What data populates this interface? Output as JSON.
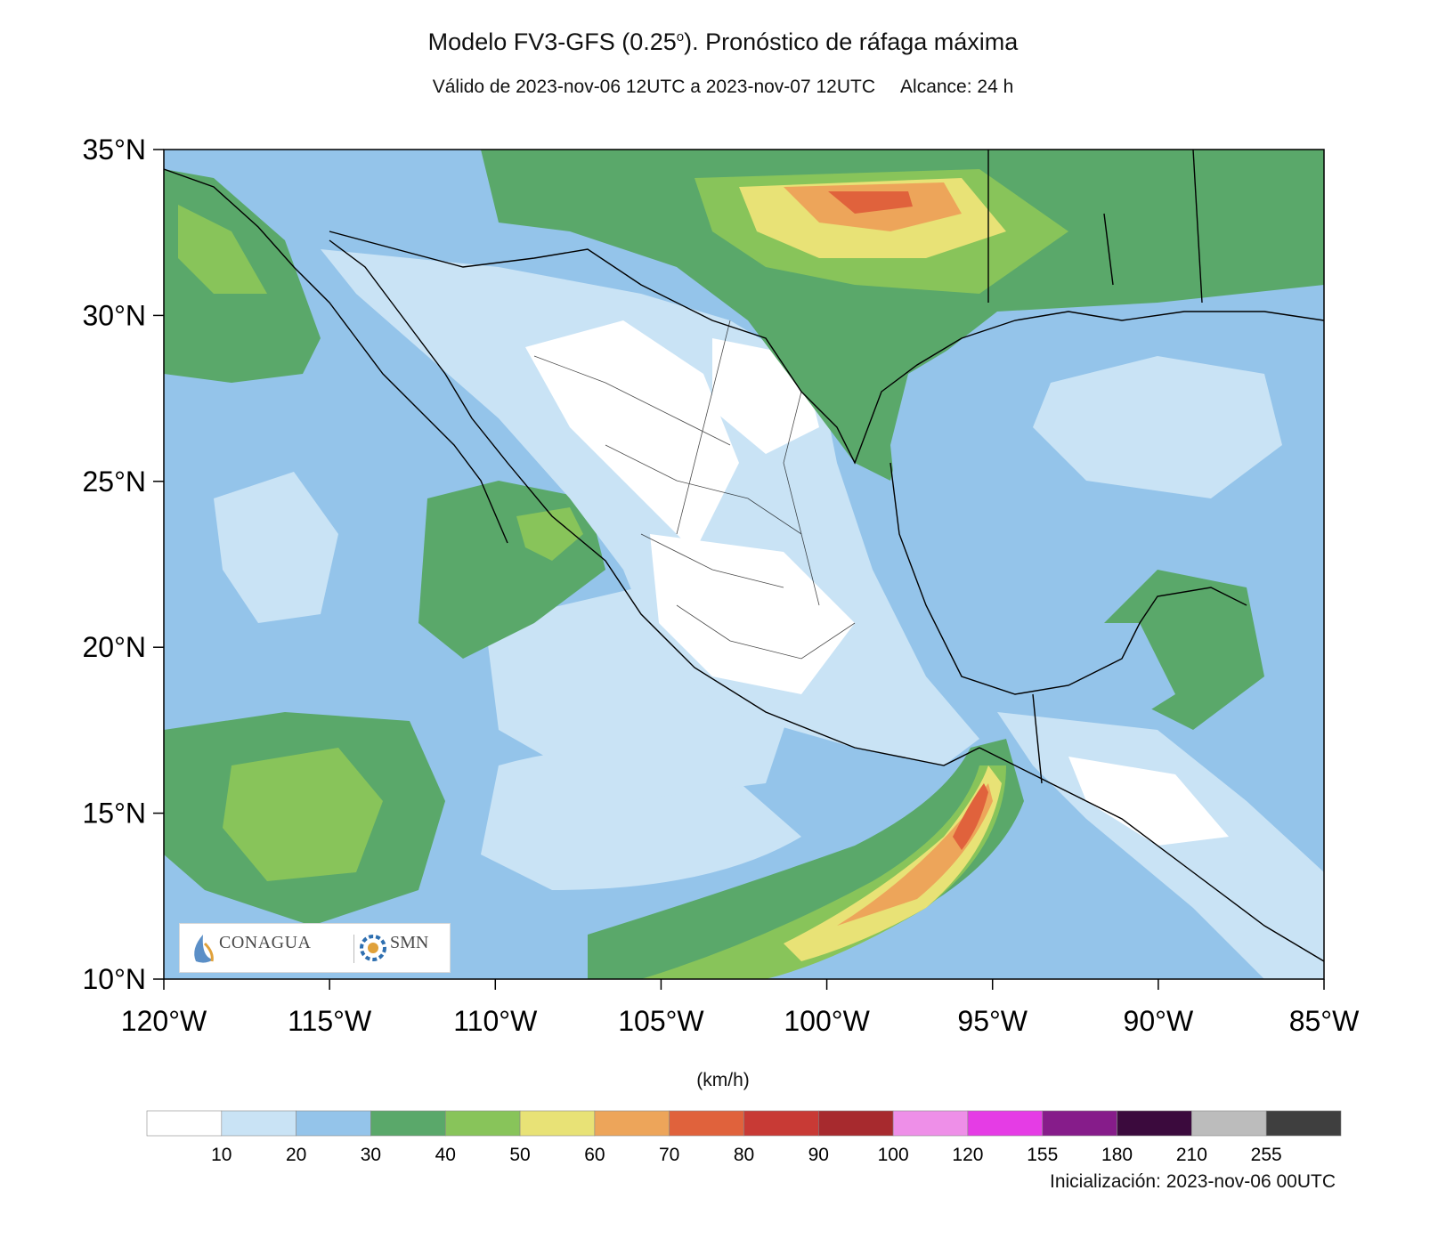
{
  "header": {
    "title_main": "Modelo FV3-GFS (0.25",
    "title_sup": "o",
    "title_rest": "). Pronóstico de ráfaga máxima",
    "valid": "Válido de 2023-nov-06 12UTC a 2023-nov-07 12UTC",
    "range": "Alcance: 24 h"
  },
  "map": {
    "extent": {
      "lon_min": -120,
      "lon_max": -85,
      "lat_min": 10,
      "lat_max": 35
    },
    "lat_ticks": [
      {
        "value": 35,
        "label": "35°N"
      },
      {
        "value": 30,
        "label": "30°N"
      },
      {
        "value": 25,
        "label": "25°N"
      },
      {
        "value": 20,
        "label": "20°N"
      },
      {
        "value": 15,
        "label": "15°N"
      },
      {
        "value": 10,
        "label": "10°N"
      }
    ],
    "lon_ticks": [
      {
        "value": -120,
        "label": "120°W"
      },
      {
        "value": -115,
        "label": "115°W"
      },
      {
        "value": -110,
        "label": "110°W"
      },
      {
        "value": -105,
        "label": "105°W"
      },
      {
        "value": -100,
        "label": "100°W"
      },
      {
        "value": -95,
        "label": "95°W"
      },
      {
        "value": -90,
        "label": "90°W"
      },
      {
        "value": -85,
        "label": "85°W"
      }
    ]
  },
  "colorbar": {
    "unit": "(km/h)",
    "bins": [
      {
        "color": "#ffffff",
        "label": "10"
      },
      {
        "color": "#c9e3f5",
        "label": "20"
      },
      {
        "color": "#94c4ea",
        "label": "30"
      },
      {
        "color": "#5aa86a",
        "label": "40"
      },
      {
        "color": "#88c45a",
        "label": "50"
      },
      {
        "color": "#e8e276",
        "label": "60"
      },
      {
        "color": "#eda55a",
        "label": "70"
      },
      {
        "color": "#e0623c",
        "label": "80"
      },
      {
        "color": "#c83a35",
        "label": "90"
      },
      {
        "color": "#a72a2e",
        "label": "100"
      },
      {
        "color": "#ee8fe8",
        "label": "120"
      },
      {
        "color": "#e53ce5",
        "label": "155"
      },
      {
        "color": "#861c8a",
        "label": "180"
      },
      {
        "color": "#3b0a3d",
        "label": "210"
      },
      {
        "color": "#bcbcbc",
        "label": "255"
      },
      {
        "color": "#3f3f3f",
        "label": ""
      }
    ]
  },
  "logos": {
    "left": "CONAGUA",
    "right": "SMN"
  },
  "footer": {
    "init": "Inicialización: 2023-nov-06 00UTC"
  }
}
